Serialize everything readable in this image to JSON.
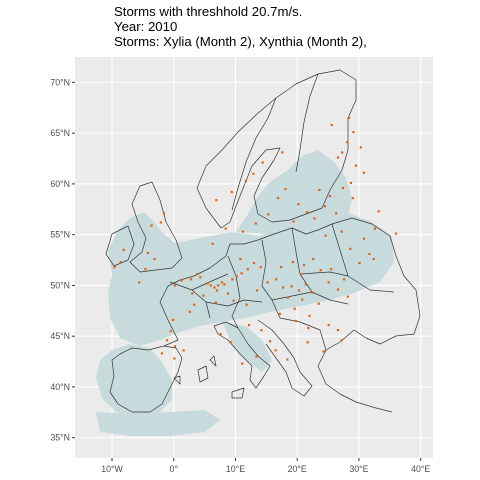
{
  "title": {
    "line1": "Storms with threshhold 20.7m/s.",
    "line2": "Year: 2010",
    "line3": "Storms: Xylia (Month 2), Xynthia (Month 2),"
  },
  "x_axis_ticks": [
    "10°W",
    "0°",
    "10°E",
    "20°E",
    "30°E",
    "40°E"
  ],
  "y_axis_ticks": [
    "70°N",
    "65°N",
    "60°N",
    "55°N",
    "50°N",
    "45°N",
    "40°N",
    "35°N"
  ],
  "colors": {
    "panel_background": "#ebebeb",
    "gridline": "#ffffff",
    "footprint": "#c7dbdc",
    "country_border": "#333333",
    "wind_point": "#e0610e"
  },
  "chart_data": {
    "type": "scatter",
    "projection": "lon-lat (equirectangular)",
    "xlim": [
      -16,
      42
    ],
    "ylim": [
      33,
      72.5
    ],
    "x_ticks": [
      -10,
      0,
      10,
      20,
      30,
      40
    ],
    "y_ticks": [
      70,
      65,
      60,
      55,
      50,
      45,
      40,
      35
    ],
    "grid": true,
    "legend": "none",
    "series": [
      {
        "points": [
          [
            5.5,
            50.2
          ],
          [
            6.0,
            50.0
          ],
          [
            6.6,
            49.8
          ],
          [
            7.2,
            50.0
          ],
          [
            7.8,
            50.3
          ],
          [
            8.2,
            50.1
          ],
          [
            7.0,
            49.5
          ],
          [
            8.8,
            49.2
          ],
          [
            9.5,
            50.6
          ],
          [
            10.2,
            50.9
          ],
          [
            11.0,
            51.2
          ],
          [
            12.0,
            51.6
          ],
          [
            13.0,
            52.2
          ],
          [
            14.1,
            51.8
          ],
          [
            10.8,
            52.6
          ],
          [
            4.3,
            50.8
          ],
          [
            3.8,
            51.1
          ],
          [
            2.8,
            50.6
          ],
          [
            1.3,
            50.5
          ],
          [
            0.2,
            50.0
          ],
          [
            3.0,
            49.2
          ],
          [
            4.8,
            49.0
          ],
          [
            6.8,
            48.3
          ],
          [
            9.7,
            48.5
          ],
          [
            11.8,
            48.1
          ],
          [
            13.5,
            49.5
          ],
          [
            15.2,
            50.3
          ],
          [
            16.6,
            50.6
          ],
          [
            17.7,
            49.8
          ],
          [
            19.1,
            49.9
          ],
          [
            20.3,
            49.5
          ],
          [
            21.4,
            50.1
          ],
          [
            22.5,
            49.3
          ],
          [
            18.5,
            48.8
          ],
          [
            20.8,
            48.6
          ],
          [
            19.6,
            47.7
          ],
          [
            22.0,
            47.0
          ],
          [
            23.5,
            48.2
          ],
          [
            17.2,
            47.2
          ],
          [
            19.8,
            46.5
          ],
          [
            21.8,
            45.8
          ],
          [
            17.4,
            51.8
          ],
          [
            19.3,
            52.3
          ],
          [
            21.1,
            52.0
          ],
          [
            22.6,
            52.6
          ],
          [
            23.8,
            51.5
          ],
          [
            25.1,
            50.3
          ],
          [
            26.6,
            49.6
          ],
          [
            27.6,
            50.6
          ],
          [
            25.5,
            51.6
          ],
          [
            28.2,
            48.9
          ],
          [
            20.6,
            51.1
          ],
          [
            19.4,
            56.3
          ],
          [
            21.6,
            57.2
          ],
          [
            22.8,
            56.6
          ],
          [
            24.5,
            57.8
          ],
          [
            26.3,
            57.1
          ],
          [
            25.3,
            58.8
          ],
          [
            20.2,
            58.0
          ],
          [
            23.6,
            59.4
          ],
          [
            27.4,
            59.6
          ],
          [
            29.0,
            58.6
          ],
          [
            15.3,
            57.0
          ],
          [
            16.9,
            58.6
          ],
          [
            18.1,
            59.5
          ],
          [
            12.9,
            61.0
          ],
          [
            14.4,
            62.1
          ],
          [
            17.6,
            63.1
          ],
          [
            11.7,
            60.3
          ],
          [
            9.4,
            59.2
          ],
          [
            6.9,
            58.4
          ],
          [
            13.3,
            56.1
          ],
          [
            8.4,
            55.6
          ],
          [
            11.2,
            55.3
          ],
          [
            6.3,
            54.1
          ],
          [
            24.6,
            54.9
          ],
          [
            27.2,
            55.3
          ],
          [
            28.6,
            53.6
          ],
          [
            30.1,
            52.2
          ],
          [
            31.7,
            53.1
          ],
          [
            32.4,
            52.6
          ],
          [
            30.8,
            54.6
          ],
          [
            33.2,
            57.3
          ],
          [
            28.7,
            60.1
          ],
          [
            30.8,
            61.1
          ],
          [
            26.6,
            62.6
          ],
          [
            28.1,
            64.1
          ],
          [
            29.1,
            65.1
          ],
          [
            25.6,
            65.8
          ],
          [
            28.4,
            66.5
          ],
          [
            27.3,
            63.1
          ],
          [
            30.3,
            63.6
          ],
          [
            29.5,
            61.8
          ],
          [
            32.6,
            55.6
          ],
          [
            36.0,
            55.1
          ],
          [
            -3.1,
            52.6
          ],
          [
            -4.6,
            51.6
          ],
          [
            -5.6,
            50.3
          ],
          [
            -4.2,
            53.2
          ],
          [
            -8.6,
            52.3
          ],
          [
            -9.6,
            51.8
          ],
          [
            -8.1,
            53.5
          ],
          [
            -3.6,
            55.9
          ],
          [
            -2.1,
            56.2
          ],
          [
            -1.6,
            57.1
          ],
          [
            -0.5,
            45.5
          ],
          [
            -1.1,
            44.6
          ],
          [
            0.2,
            44.0
          ],
          [
            1.6,
            43.6
          ],
          [
            0.1,
            42.8
          ],
          [
            -1.9,
            43.3
          ],
          [
            -0.1,
            46.6
          ],
          [
            2.6,
            47.4
          ],
          [
            3.3,
            48.1
          ],
          [
            12.2,
            46.1
          ],
          [
            14.2,
            45.6
          ],
          [
            15.6,
            44.5
          ],
          [
            16.5,
            43.6
          ],
          [
            18.4,
            42.7
          ],
          [
            13.4,
            43.0
          ],
          [
            11.1,
            42.3
          ],
          [
            7.6,
            45.2
          ],
          [
            9.2,
            44.4
          ],
          [
            25.1,
            46.1
          ],
          [
            27.2,
            44.6
          ],
          [
            24.3,
            43.5
          ],
          [
            21.7,
            44.4
          ],
          [
            26.6,
            45.6
          ]
        ]
      }
    ]
  }
}
